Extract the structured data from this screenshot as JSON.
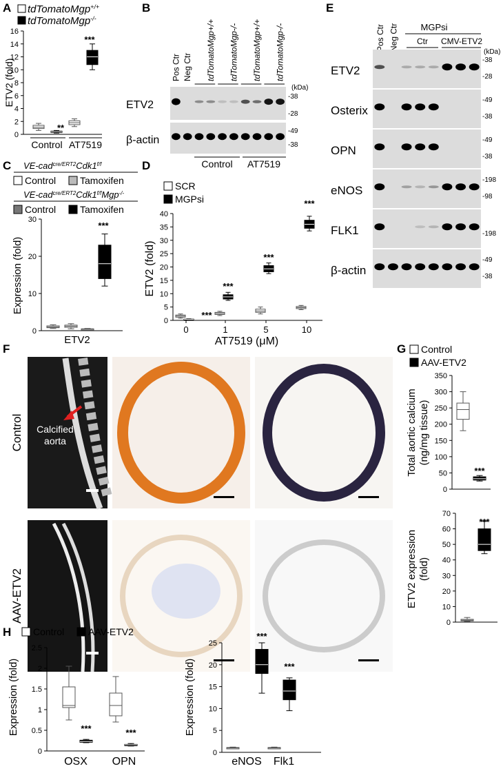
{
  "panels": {
    "A": "A",
    "B": "B",
    "C": "C",
    "D": "D",
    "E": "E",
    "F": "F",
    "G": "G",
    "H": "H"
  },
  "sig": {
    "three": "***",
    "two": "**"
  },
  "panel_a": {
    "legend": [
      {
        "gene": "tdTomato",
        "sup": "Mgp",
        "gen": "+/+",
        "fill": "#ffffff"
      },
      {
        "gene": "tdTomato",
        "sup": "Mgp",
        "gen": "-/-",
        "fill": "#000000"
      }
    ],
    "ylabel": "ETV2  (fold)",
    "yticks": [
      "0",
      "2",
      "4",
      "6",
      "8",
      "10",
      "12",
      "14",
      "16"
    ],
    "groups": [
      "Control",
      "AT7519"
    ]
  },
  "panel_b": {
    "lanes": [
      "Pos Ctr",
      "Neg Ctr"
    ],
    "geno_lanes": [
      "tdTomatoMgp+/+",
      "tdTomatoMgp-/-",
      "tdTomatoMgp+/+",
      "tdTomatoMgp-/-"
    ],
    "kda": "(kDa)",
    "rows": [
      {
        "label": "ETV2",
        "marks": [
          "38",
          "28"
        ]
      },
      {
        "label": "β-actin",
        "marks": [
          "49",
          "38"
        ]
      }
    ],
    "groups": [
      "Control",
      "AT7519"
    ]
  },
  "panel_c": {
    "line1": "VE-cadcre/ERT2Cdk1f/f",
    "line2": "VE-cadcre/ERT2Cdk1f/fMgp-/-",
    "legend1": [
      "Control",
      "Tamoxifen"
    ],
    "legend2": [
      "Control",
      "Tamoxifen"
    ],
    "ylabel": "Expression (fold)",
    "yticks": [
      "0",
      "10",
      "20",
      "30"
    ],
    "xlabel": "ETV2"
  },
  "panel_d": {
    "legend": [
      "SCR",
      "MGPsi"
    ],
    "ylabel": "ETV2 (fold)",
    "yticks": [
      "0",
      "5",
      "10",
      "15",
      "20",
      "25",
      "30",
      "35",
      "40"
    ],
    "xticks": [
      "0",
      "1",
      "5",
      "10"
    ],
    "xlabel": "AT7519 (μM)"
  },
  "panel_e": {
    "lanes": [
      "Pos Ctr",
      "Neg Ctr"
    ],
    "group_top": "MGPsi",
    "groups": [
      "Ctr",
      "CMV-ETV2"
    ],
    "kda": "(kDa)",
    "rows": [
      {
        "label": "ETV2",
        "marks": [
          "38",
          "28"
        ]
      },
      {
        "label": "Osterix",
        "marks": [
          "49",
          "38"
        ]
      },
      {
        "label": "OPN",
        "marks": [
          "49",
          "38"
        ]
      },
      {
        "label": "eNOS",
        "marks": [
          "198",
          "98"
        ]
      },
      {
        "label": "FLK1",
        "marks": [
          "198"
        ]
      },
      {
        "label": "β-actin",
        "marks": [
          "49",
          "38"
        ]
      }
    ]
  },
  "panel_f": {
    "rows": [
      "Control",
      "AAV-ETV2"
    ],
    "annotation": "Calcified aorta"
  },
  "panel_g": {
    "legend": [
      "Control",
      "AAV-ETV2"
    ],
    "ylabel1": "Total aortic calcium (ng/mg tissue)",
    "yticks1": [
      "0",
      "50",
      "100",
      "150",
      "200",
      "250",
      "300",
      "350"
    ],
    "ylabel2": "ETV2 expression (fold)",
    "yticks2": [
      "0",
      "10",
      "20",
      "30",
      "40",
      "50",
      "60",
      "70"
    ]
  },
  "panel_h": {
    "legend": [
      "Control",
      "AAV-ETV2"
    ],
    "ylabel": "Expression (fold)",
    "yticks1": [
      "0",
      "0.5",
      "1",
      "1.5",
      "2",
      "2.5"
    ],
    "xcats1": [
      "OSX",
      "OPN"
    ],
    "yticks2": [
      "0",
      "5",
      "10",
      "15",
      "20",
      "25"
    ],
    "xcats2": [
      "eNOS",
      "Flk1"
    ]
  },
  "chart_data": [
    {
      "type": "box",
      "panel": "A",
      "ylabel": "ETV2 (fold)",
      "ylim": [
        0,
        16
      ],
      "categories": [
        "Control",
        "AT7519"
      ],
      "series": [
        {
          "name": "tdTomatoMgp+/+",
          "boxes": [
            {
              "min": 0.6,
              "q1": 0.9,
              "median": 1.1,
              "q3": 1.4,
              "max": 1.7
            },
            {
              "min": 1.2,
              "q1": 1.5,
              "median": 1.8,
              "q3": 2.1,
              "max": 2.4
            }
          ]
        },
        {
          "name": "tdTomatoMgp-/-",
          "boxes": [
            {
              "min": 0.2,
              "q1": 0.3,
              "median": 0.4,
              "q3": 0.5,
              "max": 0.6
            },
            {
              "min": 10,
              "q1": 10.8,
              "median": 12,
              "q3": 13,
              "max": 14
            }
          ]
        }
      ]
    },
    {
      "type": "box",
      "panel": "C",
      "ylabel": "Expression (fold)",
      "ylim": [
        0,
        30
      ],
      "categories": [
        "ETV2"
      ],
      "series": [
        {
          "name": "VE-cadcre/ERT2Cdk1f/f Control",
          "boxes": [
            {
              "min": 0.6,
              "q1": 0.8,
              "median": 1.0,
              "q3": 1.3,
              "max": 1.6
            }
          ]
        },
        {
          "name": "VE-cadcre/ERT2Cdk1f/f Tamoxifen",
          "boxes": [
            {
              "min": 0.5,
              "q1": 0.9,
              "median": 1.2,
              "q3": 1.5,
              "max": 1.9
            }
          ]
        },
        {
          "name": "VE-cadcre/ERT2Cdk1f/fMgp-/- Control",
          "boxes": [
            {
              "min": 0.2,
              "q1": 0.3,
              "median": 0.4,
              "q3": 0.5,
              "max": 0.6
            }
          ]
        },
        {
          "name": "VE-cadcre/ERT2Cdk1f/fMgp-/- Tamoxifen",
          "boxes": [
            {
              "min": 12,
              "q1": 14,
              "median": 18,
              "q3": 23,
              "max": 26
            }
          ]
        }
      ]
    },
    {
      "type": "box",
      "panel": "D",
      "xlabel": "AT7519 (μM)",
      "ylabel": "ETV2 (fold)",
      "ylim": [
        0,
        40
      ],
      "categories": [
        "0",
        "1",
        "5",
        "10"
      ],
      "series": [
        {
          "name": "SCR",
          "boxes": [
            {
              "min": 0.8,
              "q1": 1.2,
              "median": 1.6,
              "q3": 2.0,
              "max": 2.4
            },
            {
              "min": 1.8,
              "q1": 2.2,
              "median": 2.6,
              "q3": 3.0,
              "max": 3.4
            },
            {
              "min": 2.4,
              "q1": 3.0,
              "median": 3.5,
              "q3": 4.2,
              "max": 5.0
            },
            {
              "min": 4.0,
              "q1": 4.4,
              "median": 4.8,
              "q3": 5.2,
              "max": 5.6
            }
          ]
        },
        {
          "name": "MGPsi",
          "boxes": [
            {
              "min": 0.2,
              "q1": 0.3,
              "median": 0.4,
              "q3": 0.5,
              "max": 0.6
            },
            {
              "min": 7.5,
              "q1": 8.0,
              "median": 8.8,
              "q3": 9.6,
              "max": 10.5
            },
            {
              "min": 17.5,
              "q1": 18.2,
              "median": 19.3,
              "q3": 20.5,
              "max": 21.5
            },
            {
              "min": 33.5,
              "q1": 34.5,
              "median": 36,
              "q3": 37.5,
              "max": 39
            }
          ]
        }
      ]
    },
    {
      "type": "box",
      "panel": "G-calcium",
      "ylabel": "Total aortic calcium (ng/mg tissue)",
      "ylim": [
        0,
        350
      ],
      "series": [
        {
          "name": "Control",
          "boxes": [
            {
              "min": 180,
              "q1": 215,
              "median": 245,
              "q3": 265,
              "max": 300
            }
          ]
        },
        {
          "name": "AAV-ETV2",
          "boxes": [
            {
              "min": 25,
              "q1": 28,
              "median": 32,
              "q3": 38,
              "max": 42
            }
          ]
        }
      ]
    },
    {
      "type": "box",
      "panel": "G-expression",
      "ylabel": "ETV2 expression (fold)",
      "ylim": [
        0,
        70
      ],
      "series": [
        {
          "name": "Control",
          "boxes": [
            {
              "min": 0.5,
              "q1": 0.8,
              "median": 1.2,
              "q3": 1.8,
              "max": 3
            }
          ]
        },
        {
          "name": "AAV-ETV2",
          "boxes": [
            {
              "min": 44,
              "q1": 46,
              "median": 50,
              "q3": 60,
              "max": 65
            }
          ]
        }
      ]
    },
    {
      "type": "box",
      "panel": "H-left",
      "ylabel": "Expression (fold)",
      "ylim": [
        0,
        2.5
      ],
      "categories": [
        "OSX",
        "OPN"
      ],
      "series": [
        {
          "name": "Control",
          "boxes": [
            {
              "min": 0.75,
              "q1": 1.05,
              "median": 1.1,
              "q3": 1.55,
              "max": 2.05
            },
            {
              "min": 0.7,
              "q1": 0.85,
              "median": 1.1,
              "q3": 1.4,
              "max": 1.8
            }
          ]
        },
        {
          "name": "AAV-ETV2",
          "boxes": [
            {
              "min": 0.2,
              "q1": 0.21,
              "median": 0.23,
              "q3": 0.26,
              "max": 0.28
            },
            {
              "min": 0.12,
              "q1": 0.13,
              "median": 0.15,
              "q3": 0.16,
              "max": 0.18
            }
          ]
        }
      ]
    },
    {
      "type": "box",
      "panel": "H-right",
      "ylabel": "Expression (fold)",
      "ylim": [
        0,
        25
      ],
      "categories": [
        "eNOS",
        "Flk1"
      ],
      "series": [
        {
          "name": "Control",
          "boxes": [
            {
              "min": 0.8,
              "q1": 0.9,
              "median": 1.0,
              "q3": 1.1,
              "max": 1.2
            },
            {
              "min": 0.8,
              "q1": 0.9,
              "median": 1.0,
              "q3": 1.1,
              "max": 1.2
            }
          ]
        },
        {
          "name": "AAV-ETV2",
          "boxes": [
            {
              "min": 13.5,
              "q1": 18,
              "median": 20,
              "q3": 23.5,
              "max": 25
            },
            {
              "min": 9.5,
              "q1": 12,
              "median": 14,
              "q3": 16.5,
              "max": 17
            }
          ]
        }
      ]
    }
  ]
}
